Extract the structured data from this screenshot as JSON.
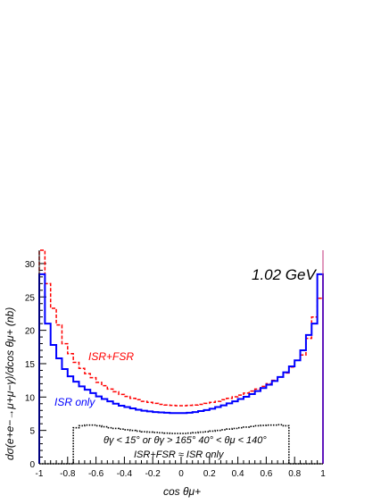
{
  "chart_data": {
    "type": "line",
    "title": "1.02 GeV",
    "xlabel": "cos θμ+",
    "ylabel": "dσ(e+e−→μ+μ−γ)/dcos θμ+ (nb)",
    "xlim": [
      -1,
      1
    ],
    "ylim": [
      0,
      32
    ],
    "x_ticks": [
      -1,
      -0.8,
      -0.6,
      -0.4,
      -0.2,
      0,
      0.2,
      0.4,
      0.6,
      0.8,
      1
    ],
    "x_tick_labels": [
      "-1",
      "-0.8",
      "-0.6",
      "-0.4",
      "-0.2",
      "0",
      "0.2",
      "0.4",
      "0.6",
      "0.8",
      "1"
    ],
    "y_ticks": [
      0,
      5,
      10,
      15,
      20,
      25,
      30
    ],
    "y_tick_labels": [
      "0",
      "5",
      "10",
      "15",
      "20",
      "25",
      "30"
    ],
    "bin_edges": [
      -1.0,
      -0.96,
      -0.92,
      -0.88,
      -0.84,
      -0.8,
      -0.76,
      -0.72,
      -0.68,
      -0.64,
      -0.6,
      -0.56,
      -0.52,
      -0.48,
      -0.44,
      -0.4,
      -0.36,
      -0.32,
      -0.28,
      -0.24,
      -0.2,
      -0.16,
      -0.12,
      -0.08,
      -0.04,
      0.0,
      0.04,
      0.08,
      0.12,
      0.16,
      0.2,
      0.24,
      0.28,
      0.32,
      0.36,
      0.4,
      0.44,
      0.48,
      0.52,
      0.56,
      0.6,
      0.64,
      0.68,
      0.72,
      0.76,
      0.8,
      0.84,
      0.88,
      0.92,
      0.96,
      1.0
    ],
    "series": [
      {
        "name": "ISR+FSR",
        "color": "#ff0000",
        "style": "dashed",
        "values": [
          38.0,
          27.0,
          23.3,
          20.8,
          18.0,
          16.5,
          15.2,
          14.3,
          13.5,
          12.9,
          12.2,
          11.7,
          11.2,
          10.8,
          10.4,
          10.1,
          9.8,
          9.6,
          9.35,
          9.2,
          9.05,
          8.9,
          8.8,
          8.75,
          8.7,
          8.7,
          8.75,
          8.8,
          8.9,
          9.05,
          9.2,
          9.35,
          9.6,
          9.8,
          10.05,
          10.3,
          10.6,
          10.9,
          11.2,
          11.6,
          12.0,
          12.5,
          13.0,
          13.6,
          14.5,
          15.5,
          16.3,
          18.8,
          22.0,
          24.8
        ]
      },
      {
        "name": "ISR only",
        "color": "#0000ff",
        "style": "solid",
        "values": [
          28.4,
          21.0,
          17.8,
          15.8,
          14.2,
          13.1,
          12.3,
          11.6,
          11.1,
          10.6,
          10.1,
          9.7,
          9.35,
          9.0,
          8.7,
          8.5,
          8.3,
          8.1,
          7.95,
          7.85,
          7.75,
          7.7,
          7.65,
          7.6,
          7.6,
          7.6,
          7.65,
          7.75,
          7.9,
          8.05,
          8.25,
          8.5,
          8.75,
          9.05,
          9.35,
          9.7,
          10.05,
          10.45,
          10.9,
          11.35,
          11.85,
          12.4,
          13.0,
          13.7,
          14.6,
          15.5,
          17.0,
          19.3,
          21.0,
          28.4
        ]
      },
      {
        "name": "cut",
        "color": "#000000",
        "style": "dotted",
        "values": [
          0,
          0,
          0,
          0,
          0,
          0,
          5.4,
          5.7,
          5.8,
          5.8,
          5.7,
          5.55,
          5.4,
          5.3,
          5.2,
          5.1,
          5.0,
          4.9,
          4.8,
          4.75,
          4.7,
          4.65,
          4.6,
          4.55,
          4.55,
          4.55,
          4.6,
          4.65,
          4.75,
          4.8,
          4.9,
          5.0,
          5.1,
          5.2,
          5.3,
          5.4,
          5.5,
          5.6,
          5.7,
          5.75,
          5.8,
          5.8,
          5.85,
          5.7,
          0,
          0,
          0,
          0,
          0,
          0
        ]
      }
    ],
    "annotations": {
      "isr_fsr_label": "ISR+FSR",
      "isr_only_label": "ISR only",
      "cut_line1": "θγ < 15° or θγ > 165°   40° < θμ < 140°",
      "cut_line2": "ISR+FSR ≈ ISR only"
    }
  }
}
